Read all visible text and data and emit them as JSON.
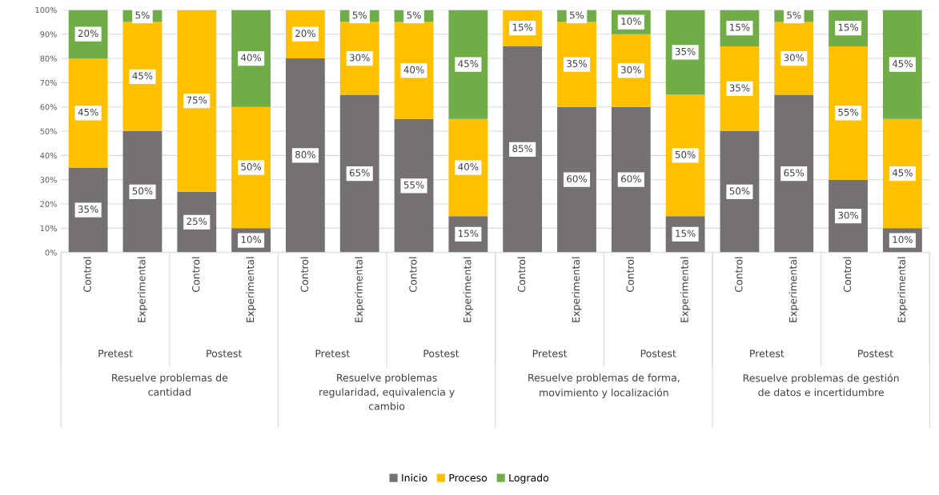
{
  "chart_data": {
    "type": "bar",
    "stacked": true,
    "categories": [
      "Control",
      "Experimental",
      "Control",
      "Experimental",
      "Control",
      "Experimental",
      "Control",
      "Experimental",
      "Control",
      "Experimental",
      "Control",
      "Experimental",
      "Control",
      "Experimental",
      "Control",
      "Experimental"
    ],
    "series": [
      {
        "name": "Inicio",
        "color": "#767171",
        "values": [
          35,
          50,
          25,
          10,
          80,
          65,
          55,
          15,
          85,
          60,
          60,
          15,
          50,
          65,
          30,
          10
        ],
        "value_labels": [
          "35%",
          "50%",
          "25%",
          "10%",
          "80%",
          "65%",
          "55%",
          "15%",
          "85%",
          "60%",
          "60%",
          "15%",
          "50%",
          "65%",
          "30%",
          "10%"
        ]
      },
      {
        "name": "Proceso",
        "color": "#ffc000",
        "values": [
          45,
          45,
          75,
          50,
          20,
          30,
          40,
          40,
          15,
          35,
          30,
          50,
          35,
          30,
          55,
          45
        ],
        "value_labels": [
          "45%",
          "45%",
          "75%",
          "50%",
          "20%",
          "30%",
          "40%",
          "40%",
          "15%",
          "35%",
          "30%",
          "50%",
          "35%",
          "30%",
          "55%",
          "45%"
        ]
      },
      {
        "name": "Logrado",
        "color": "#70ad47",
        "values": [
          20,
          5,
          0,
          40,
          0,
          5,
          5,
          45,
          0,
          5,
          10,
          35,
          15,
          5,
          15,
          45
        ],
        "value_labels": [
          "20%",
          "5%",
          null,
          "40%",
          null,
          "5%",
          "5%",
          "45%",
          null,
          "5%",
          "10%",
          "35%",
          "15%",
          "5%",
          "15%",
          "45%"
        ]
      }
    ],
    "ylim": [
      0,
      100
    ],
    "yticks": [
      {
        "value": 0,
        "label": "0%"
      },
      {
        "value": 10,
        "label": "10%"
      },
      {
        "value": 20,
        "label": "20%"
      },
      {
        "value": 30,
        "label": "30%"
      },
      {
        "value": 40,
        "label": "40%"
      },
      {
        "value": 50,
        "label": "50%"
      },
      {
        "value": 60,
        "label": "60%"
      },
      {
        "value": 70,
        "label": "70%"
      },
      {
        "value": 80,
        "label": "80%"
      },
      {
        "value": 90,
        "label": "90%"
      },
      {
        "value": 100,
        "label": "100%"
      }
    ],
    "grid": "y",
    "legend": "bottom",
    "annotations": [
      "Pretest",
      "Postest",
      "Pretest",
      "Postest",
      "Pretest",
      "Postest",
      "Pretest",
      "Postest",
      "Resuelve problemas de\ncantidad",
      "Resuelve problemas\nregularidad, equivalencia y\ncambio",
      "Resuelve problemas de forma,\nmovimiento y localización",
      "Resuelve problemas de gestión\nde datos e incertidumbre"
    ]
  }
}
